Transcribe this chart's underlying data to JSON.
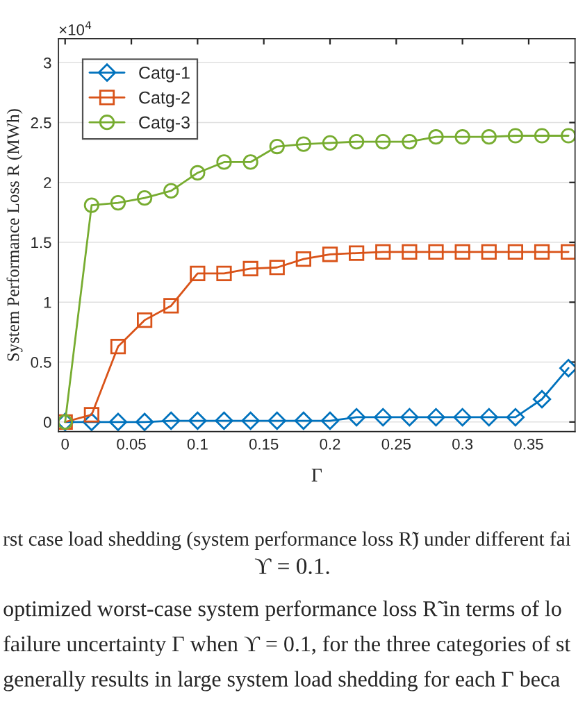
{
  "chart_data": {
    "type": "line",
    "xlabel": "Γ",
    "ylabel": "System Performance Loss R (MWh)",
    "x": [
      0,
      0.02,
      0.04,
      0.06,
      0.08,
      0.1,
      0.12,
      0.14,
      0.16,
      0.18,
      0.2,
      0.22,
      0.24,
      0.26,
      0.28,
      0.3,
      0.32,
      0.34,
      0.36,
      0.38
    ],
    "series": [
      {
        "name": "Catg-1",
        "color": "#0072bd",
        "marker": "diamond",
        "values": [
          0,
          0,
          0,
          0,
          0.01,
          0.01,
          0.01,
          0.01,
          0.01,
          0.01,
          0.01,
          0.04,
          0.04,
          0.04,
          0.04,
          0.04,
          0.04,
          0.04,
          0.19,
          0.45
        ]
      },
      {
        "name": "Catg-2",
        "color": "#d95319",
        "marker": "square",
        "values": [
          0,
          0.06,
          0.63,
          0.85,
          0.97,
          1.24,
          1.24,
          1.28,
          1.29,
          1.36,
          1.4,
          1.41,
          1.42,
          1.42,
          1.42,
          1.42,
          1.42,
          1.42,
          1.42,
          1.42
        ]
      },
      {
        "name": "Catg-3",
        "color": "#77ac30",
        "marker": "circle",
        "values": [
          0,
          1.81,
          1.83,
          1.87,
          1.93,
          2.08,
          2.17,
          2.17,
          2.3,
          2.32,
          2.33,
          2.34,
          2.34,
          2.34,
          2.38,
          2.38,
          2.38,
          2.39,
          2.39,
          2.39
        ]
      }
    ],
    "xlim": [
      -0.005,
      0.385
    ],
    "xticks": [
      0,
      0.05,
      0.1,
      0.15,
      0.2,
      0.25,
      0.3,
      0.35
    ],
    "ylim": [
      -0.08,
      3.2
    ],
    "yticks": [
      0,
      0.5,
      1,
      1.5,
      2,
      2.5,
      3
    ],
    "grid": "y",
    "legend": "top left",
    "line_style": "solid",
    "annotations": [
      "×10$^{4}$",
      "rst case load shedding (system performance loss R̃) under different fai",
      "ϒ = 0.1.",
      "optimized worst-case system performance loss R̃ in terms of lo",
      "failure uncertainty Γ when ϒ = 0.1, for the three categories of st",
      "generally results in large system load shedding for each Γ beca"
    ]
  }
}
